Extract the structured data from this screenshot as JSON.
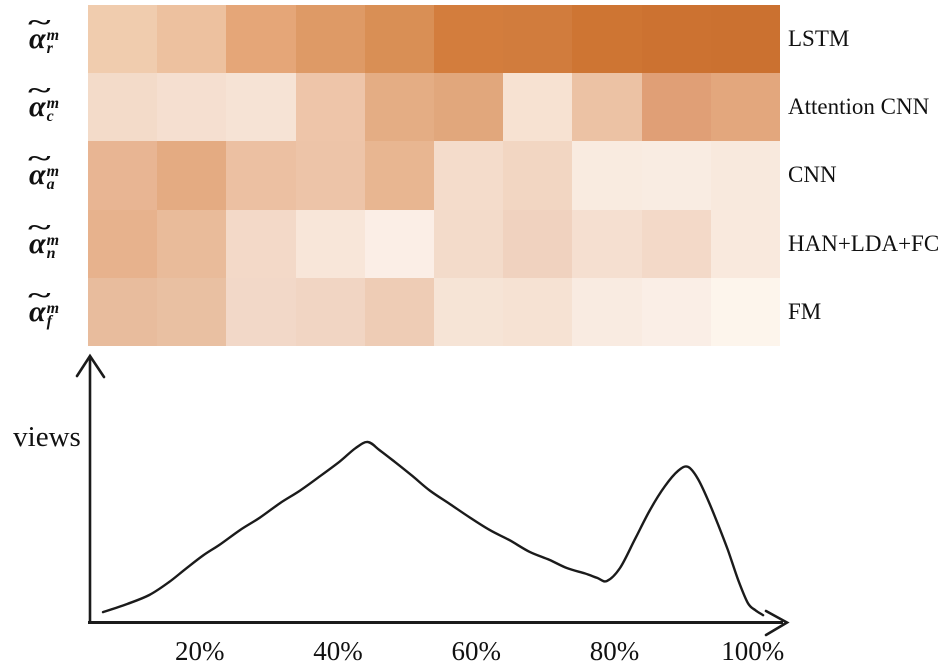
{
  "figure": {
    "y_axis_label": "views",
    "ink_color": "#1b1b1b",
    "row_labels": [
      {
        "base": "α",
        "accent": "~",
        "sup": "m",
        "sub": "r"
      },
      {
        "base": "α",
        "accent": "~",
        "sup": "m",
        "sub": "c"
      },
      {
        "base": "α",
        "accent": "~",
        "sup": "m",
        "sub": "a"
      },
      {
        "base": "α",
        "accent": "~",
        "sup": "m",
        "sub": "n"
      },
      {
        "base": "α",
        "accent": "~",
        "sup": "m",
        "sub": "f"
      }
    ],
    "model_labels": [
      "LSTM",
      "Attention CNN",
      "CNN",
      "HAN+LDA+FC",
      "FM"
    ]
  },
  "chart_data": [
    {
      "type": "heatmap",
      "rows": [
        "LSTM",
        "Attention CNN",
        "CNN",
        "HAN+LDA+FC",
        "FM"
      ],
      "row_symbols": [
        "α̃ᵐ_r",
        "α̃ᵐ_c",
        "α̃ᵐ_a",
        "α̃ᵐ_n",
        "α̃ᵐ_f"
      ],
      "n_cols": 10,
      "colormap": "Oranges (light=low, dark orange=high)",
      "cell_colors": [
        [
          "#f0ccae",
          "#edc19f",
          "#e5a678",
          "#de9a66",
          "#d98f55",
          "#d37d3d",
          "#d17c3d",
          "#ce7533",
          "#cc7231",
          "#cb7130"
        ],
        [
          "#f3dbc9",
          "#f5dfd0",
          "#f6e3d5",
          "#eec5a9",
          "#e4ad84",
          "#e1a77c",
          "#f7e2d2",
          "#ecc2a4",
          "#e09f76",
          "#e3a77d"
        ],
        [
          "#e8b593",
          "#e4ab82",
          "#ecc0a2",
          "#edc4a8",
          "#e8b691",
          "#f4dccb",
          "#f2d6c2",
          "#f9ebe0",
          "#f9ece2",
          "#f8e9dd"
        ],
        [
          "#e7b28d",
          "#e9bb9a",
          "#f3d9c8",
          "#f8e6d9",
          "#fbeee6",
          "#f3dbca",
          "#f0d2bf",
          "#f5dfd0",
          "#f3d9c8",
          "#f9e9dd"
        ],
        [
          "#e8bc9d",
          "#e9c0a2",
          "#f2d8c8",
          "#f1d5c3",
          "#eeccb5",
          "#f6e4d6",
          "#f6e2d3",
          "#f9ebe1",
          "#faeee6",
          "#fdf5ec"
        ]
      ],
      "values_estimated_0to1": [
        [
          0.28,
          0.33,
          0.52,
          0.58,
          0.63,
          0.74,
          0.75,
          0.77,
          0.79,
          0.79
        ],
        [
          0.16,
          0.14,
          0.12,
          0.31,
          0.45,
          0.47,
          0.13,
          0.32,
          0.5,
          0.46
        ],
        [
          0.4,
          0.46,
          0.33,
          0.31,
          0.39,
          0.16,
          0.2,
          0.07,
          0.06,
          0.09
        ],
        [
          0.42,
          0.37,
          0.18,
          0.1,
          0.05,
          0.17,
          0.23,
          0.14,
          0.18,
          0.08
        ],
        [
          0.36,
          0.33,
          0.18,
          0.2,
          0.26,
          0.11,
          0.12,
          0.07,
          0.05,
          0.02
        ]
      ]
    },
    {
      "type": "line",
      "ylabel": "views",
      "xlim_pct": [
        0,
        105
      ],
      "ylim_norm": [
        0,
        1.1
      ],
      "grid": false,
      "legend": "none",
      "ticks": [
        {
          "label": "20%",
          "pct": 20
        },
        {
          "label": "40%",
          "pct": 40
        },
        {
          "label": "60%",
          "pct": 60
        },
        {
          "label": "80%",
          "pct": 80
        },
        {
          "label": "100%",
          "pct": 100
        }
      ],
      "peaks_note": {
        "primary_peak_pct": 44,
        "valley_pct": 79,
        "secondary_peak_pct": 90.5
      },
      "points_pct_h": [
        [
          6.0,
          0.055
        ],
        [
          9.5,
          0.1
        ],
        [
          12.7,
          0.15
        ],
        [
          15.5,
          0.22
        ],
        [
          17.8,
          0.29
        ],
        [
          20.5,
          0.37
        ],
        [
          22.9,
          0.43
        ],
        [
          25.8,
          0.51
        ],
        [
          28.7,
          0.58
        ],
        [
          31.6,
          0.66
        ],
        [
          34.5,
          0.73
        ],
        [
          37.4,
          0.81
        ],
        [
          40.2,
          0.89
        ],
        [
          42.5,
          0.965
        ],
        [
          44.3,
          1.0
        ],
        [
          46.0,
          0.955
        ],
        [
          48.2,
          0.89
        ],
        [
          50.8,
          0.81
        ],
        [
          53.3,
          0.73
        ],
        [
          56.2,
          0.655
        ],
        [
          59.1,
          0.58
        ],
        [
          62.0,
          0.51
        ],
        [
          64.8,
          0.455
        ],
        [
          67.7,
          0.39
        ],
        [
          70.6,
          0.345
        ],
        [
          73.1,
          0.3
        ],
        [
          75.7,
          0.27
        ],
        [
          77.5,
          0.245
        ],
        [
          78.9,
          0.228
        ],
        [
          80.8,
          0.3
        ],
        [
          82.9,
          0.455
        ],
        [
          85.1,
          0.62
        ],
        [
          87.3,
          0.755
        ],
        [
          89.2,
          0.84
        ],
        [
          90.6,
          0.862
        ],
        [
          92.0,
          0.8
        ],
        [
          93.5,
          0.68
        ],
        [
          95.0,
          0.54
        ],
        [
          96.4,
          0.4
        ],
        [
          97.9,
          0.233
        ],
        [
          99.3,
          0.105
        ],
        [
          100.4,
          0.065
        ],
        [
          101.5,
          0.038
        ]
      ]
    }
  ]
}
